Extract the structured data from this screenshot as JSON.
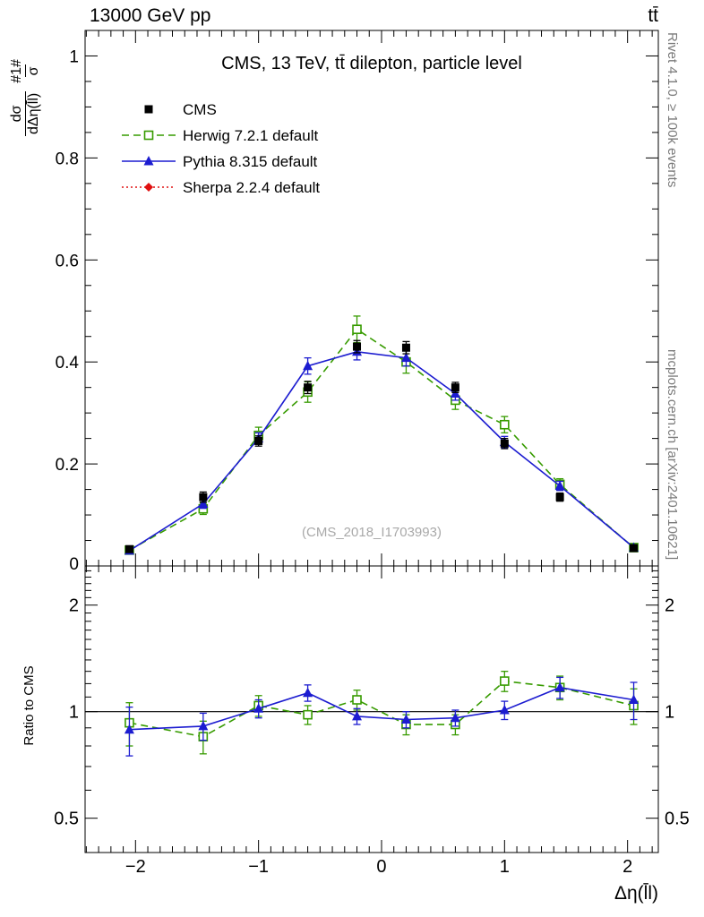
{
  "header": {
    "left": "13000 GeV pp",
    "right": "tt̄"
  },
  "side": {
    "rivet": "Rivet 4.1.0, ≥ 100k events",
    "mcplots": "mcplots.cern.ch [arXiv:2401.10621]"
  },
  "main": {
    "title": "CMS, 13 TeV, tt̄ dilepton, particle level",
    "watermark": "(CMS_2018_I1703993)"
  },
  "ylabel_main": {
    "part1_num": "#1#",
    "part1_den": "σ",
    "part2_num": "dσ",
    "part2_den": "dΔη(l̄l)"
  },
  "chart_data": {
    "type": "line",
    "title": "CMS, 13 TeV, tt̄ dilepton, particle level",
    "xlabel": "Δη(l̄l)",
    "x": [
      -2.05,
      -1.45,
      -1.0,
      -0.6,
      -0.2,
      0.2,
      0.6,
      1.0,
      1.45,
      2.05
    ],
    "xlim": [
      -2.41,
      2.25
    ],
    "xticks": [
      -2,
      -1,
      0,
      1,
      2
    ],
    "main_panel": {
      "ylim": [
        0,
        1.05
      ],
      "yticks": [
        0,
        0.2,
        0.4,
        0.6,
        0.8,
        1
      ],
      "grid": false,
      "legend_position": "top-left"
    },
    "ratio_panel": {
      "scale": "log",
      "ylim": [
        0.4,
        2.58
      ],
      "yticks": [
        0.5,
        1,
        2
      ],
      "ylabel": "Ratio to CMS",
      "reference_line": 1
    },
    "series": [
      {
        "name": "CMS",
        "color": "#000000",
        "marker": "square-filled",
        "line": "none",
        "values": [
          0.033,
          0.135,
          0.245,
          0.35,
          0.43,
          0.428,
          0.35,
          0.24,
          0.135,
          0.035
        ],
        "errors": [
          0.006,
          0.01,
          0.01,
          0.012,
          0.012,
          0.012,
          0.01,
          0.01,
          0.008,
          0.005
        ]
      },
      {
        "name": "Herwig 7.2.1 default",
        "color": "#379b00",
        "marker": "square-open",
        "line": "dashed",
        "values": [
          0.031,
          0.112,
          0.256,
          0.341,
          0.464,
          0.4,
          0.325,
          0.277,
          0.16,
          0.036
        ],
        "errors": [
          0.005,
          0.011,
          0.016,
          0.02,
          0.026,
          0.022,
          0.018,
          0.016,
          0.011,
          0.005
        ],
        "ratio": [
          0.93,
          0.85,
          1.04,
          0.98,
          1.08,
          0.92,
          0.92,
          1.22,
          1.17,
          1.04
        ],
        "ratio_errors": [
          0.13,
          0.09,
          0.07,
          0.06,
          0.07,
          0.06,
          0.06,
          0.08,
          0.09,
          0.12
        ]
      },
      {
        "name": "Pythia 8.315 default",
        "color": "#1c1cd0",
        "marker": "triangle-filled",
        "line": "solid",
        "values": [
          0.03,
          0.122,
          0.25,
          0.392,
          0.42,
          0.408,
          0.338,
          0.243,
          0.157,
          0.036
        ],
        "errors": [
          0.004,
          0.009,
          0.011,
          0.016,
          0.016,
          0.016,
          0.013,
          0.011,
          0.009,
          0.004
        ],
        "ratio": [
          0.89,
          0.91,
          1.02,
          1.13,
          0.97,
          0.95,
          0.96,
          1.01,
          1.17,
          1.08
        ],
        "ratio_errors": [
          0.14,
          0.08,
          0.06,
          0.06,
          0.05,
          0.05,
          0.05,
          0.06,
          0.08,
          0.13
        ]
      },
      {
        "name": "Sherpa 2.2.4 default",
        "color": "#e01010",
        "marker": "diamond-filled",
        "line": "dotted",
        "values": [],
        "errors": [],
        "ratio": [],
        "ratio_errors": []
      }
    ]
  }
}
